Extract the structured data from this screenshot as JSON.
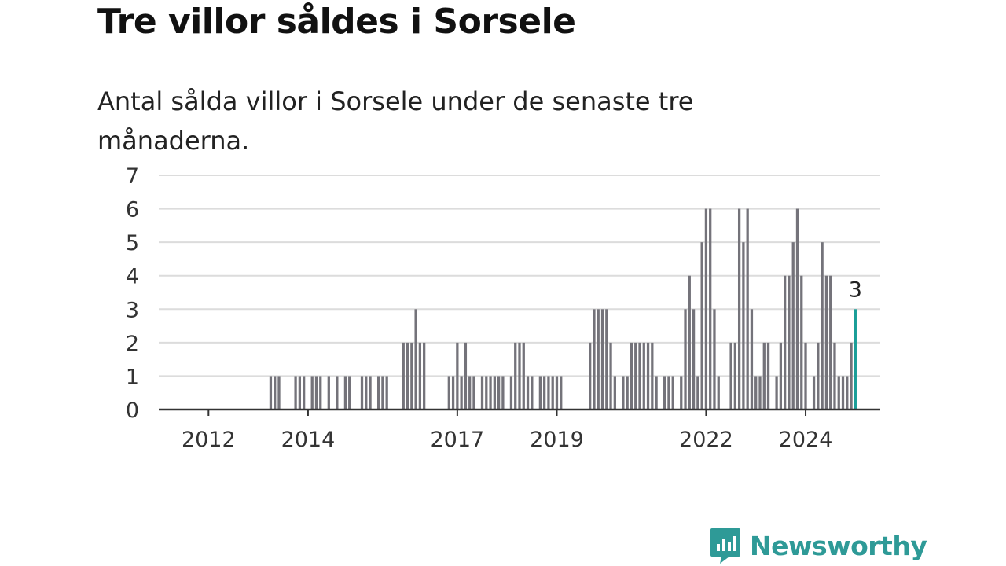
{
  "header": {
    "title": "Tre villor såldes i Sorsele",
    "subtitle": "Antal sålda villor i Sorsele under de senaste tre månaderna."
  },
  "brand": {
    "name": "Newsworthy",
    "icon": "newsworthy-logo-icon",
    "color": "#2e9a97"
  },
  "colors": {
    "bar": "#74737a",
    "highlight": "#1a9e98",
    "grid": "#dcdcdc",
    "axis": "#333333"
  },
  "chart_data": {
    "type": "bar",
    "title": "",
    "xlabel": "",
    "ylabel": "",
    "ylim": [
      0,
      7
    ],
    "yticks": [
      0,
      1,
      2,
      3,
      4,
      5,
      6,
      7
    ],
    "grid": true,
    "x_start": "2011-01",
    "x_end": "2025-07",
    "xticks": [
      {
        "date": "2012-01",
        "label": "2012"
      },
      {
        "date": "2014-01",
        "label": "2014"
      },
      {
        "date": "2017-01",
        "label": "2017"
      },
      {
        "date": "2019-01",
        "label": "2019"
      },
      {
        "date": "2022-01",
        "label": "2022"
      },
      {
        "date": "2024-01",
        "label": "2024"
      }
    ],
    "series": [
      {
        "values": [
          {
            "date": "2012-05",
            "value": 0
          },
          {
            "date": "2012-06",
            "value": 0
          },
          {
            "date": "2012-07",
            "value": 0
          },
          {
            "date": "2012-08",
            "value": 0
          },
          {
            "date": "2012-09",
            "value": 0
          },
          {
            "date": "2012-10",
            "value": 0
          },
          {
            "date": "2012-11",
            "value": 0
          },
          {
            "date": "2012-12",
            "value": 0
          },
          {
            "date": "2013-01",
            "value": 0
          },
          {
            "date": "2013-02",
            "value": 0
          },
          {
            "date": "2013-03",
            "value": 0
          },
          {
            "date": "2013-04",
            "value": 1
          },
          {
            "date": "2013-05",
            "value": 1
          },
          {
            "date": "2013-06",
            "value": 1
          },
          {
            "date": "2013-07",
            "value": 0
          },
          {
            "date": "2013-08",
            "value": 0
          },
          {
            "date": "2013-09",
            "value": 0
          },
          {
            "date": "2013-10",
            "value": 1
          },
          {
            "date": "2013-11",
            "value": 1
          },
          {
            "date": "2013-12",
            "value": 1
          },
          {
            "date": "2014-01",
            "value": 0
          },
          {
            "date": "2014-02",
            "value": 1
          },
          {
            "date": "2014-03",
            "value": 1
          },
          {
            "date": "2014-04",
            "value": 1
          },
          {
            "date": "2014-05",
            "value": 0
          },
          {
            "date": "2014-06",
            "value": 1
          },
          {
            "date": "2014-07",
            "value": 0
          },
          {
            "date": "2014-08",
            "value": 1
          },
          {
            "date": "2014-09",
            "value": 0
          },
          {
            "date": "2014-10",
            "value": 1
          },
          {
            "date": "2014-11",
            "value": 1
          },
          {
            "date": "2014-12",
            "value": 0
          },
          {
            "date": "2015-01",
            "value": 0
          },
          {
            "date": "2015-02",
            "value": 1
          },
          {
            "date": "2015-03",
            "value": 1
          },
          {
            "date": "2015-04",
            "value": 1
          },
          {
            "date": "2015-05",
            "value": 0
          },
          {
            "date": "2015-06",
            "value": 1
          },
          {
            "date": "2015-07",
            "value": 1
          },
          {
            "date": "2015-08",
            "value": 1
          },
          {
            "date": "2015-09",
            "value": 0
          },
          {
            "date": "2015-10",
            "value": 0
          },
          {
            "date": "2015-11",
            "value": 0
          },
          {
            "date": "2015-12",
            "value": 2
          },
          {
            "date": "2016-01",
            "value": 2
          },
          {
            "date": "2016-02",
            "value": 2
          },
          {
            "date": "2016-03",
            "value": 3
          },
          {
            "date": "2016-04",
            "value": 2
          },
          {
            "date": "2016-05",
            "value": 2
          },
          {
            "date": "2016-06",
            "value": 0
          },
          {
            "date": "2016-07",
            "value": 0
          },
          {
            "date": "2016-08",
            "value": 0
          },
          {
            "date": "2016-09",
            "value": 0
          },
          {
            "date": "2016-10",
            "value": 0
          },
          {
            "date": "2016-11",
            "value": 1
          },
          {
            "date": "2016-12",
            "value": 1
          },
          {
            "date": "2017-01",
            "value": 2
          },
          {
            "date": "2017-02",
            "value": 1
          },
          {
            "date": "2017-03",
            "value": 2
          },
          {
            "date": "2017-04",
            "value": 1
          },
          {
            "date": "2017-05",
            "value": 1
          },
          {
            "date": "2017-06",
            "value": 0
          },
          {
            "date": "2017-07",
            "value": 1
          },
          {
            "date": "2017-08",
            "value": 1
          },
          {
            "date": "2017-09",
            "value": 1
          },
          {
            "date": "2017-10",
            "value": 1
          },
          {
            "date": "2017-11",
            "value": 1
          },
          {
            "date": "2017-12",
            "value": 1
          },
          {
            "date": "2018-01",
            "value": 0
          },
          {
            "date": "2018-02",
            "value": 1
          },
          {
            "date": "2018-03",
            "value": 2
          },
          {
            "date": "2018-04",
            "value": 2
          },
          {
            "date": "2018-05",
            "value": 2
          },
          {
            "date": "2018-06",
            "value": 1
          },
          {
            "date": "2018-07",
            "value": 1
          },
          {
            "date": "2018-08",
            "value": 0
          },
          {
            "date": "2018-09",
            "value": 1
          },
          {
            "date": "2018-10",
            "value": 1
          },
          {
            "date": "2018-11",
            "value": 1
          },
          {
            "date": "2018-12",
            "value": 1
          },
          {
            "date": "2019-01",
            "value": 1
          },
          {
            "date": "2019-02",
            "value": 1
          },
          {
            "date": "2019-03",
            "value": 0
          },
          {
            "date": "2019-04",
            "value": 0
          },
          {
            "date": "2019-05",
            "value": 0
          },
          {
            "date": "2019-06",
            "value": 0
          },
          {
            "date": "2019-07",
            "value": 0
          },
          {
            "date": "2019-08",
            "value": 0
          },
          {
            "date": "2019-09",
            "value": 2
          },
          {
            "date": "2019-10",
            "value": 3
          },
          {
            "date": "2019-11",
            "value": 3
          },
          {
            "date": "2019-12",
            "value": 3
          },
          {
            "date": "2020-01",
            "value": 3
          },
          {
            "date": "2020-02",
            "value": 2
          },
          {
            "date": "2020-03",
            "value": 1
          },
          {
            "date": "2020-04",
            "value": 0
          },
          {
            "date": "2020-05",
            "value": 1
          },
          {
            "date": "2020-06",
            "value": 1
          },
          {
            "date": "2020-07",
            "value": 2
          },
          {
            "date": "2020-08",
            "value": 2
          },
          {
            "date": "2020-09",
            "value": 2
          },
          {
            "date": "2020-10",
            "value": 2
          },
          {
            "date": "2020-11",
            "value": 2
          },
          {
            "date": "2020-12",
            "value": 2
          },
          {
            "date": "2021-01",
            "value": 1
          },
          {
            "date": "2021-02",
            "value": 0
          },
          {
            "date": "2021-03",
            "value": 1
          },
          {
            "date": "2021-04",
            "value": 1
          },
          {
            "date": "2021-05",
            "value": 1
          },
          {
            "date": "2021-06",
            "value": 0
          },
          {
            "date": "2021-07",
            "value": 1
          },
          {
            "date": "2021-08",
            "value": 3
          },
          {
            "date": "2021-09",
            "value": 4
          },
          {
            "date": "2021-10",
            "value": 3
          },
          {
            "date": "2021-11",
            "value": 1
          },
          {
            "date": "2021-12",
            "value": 5
          },
          {
            "date": "2022-01",
            "value": 6
          },
          {
            "date": "2022-02",
            "value": 6
          },
          {
            "date": "2022-03",
            "value": 3
          },
          {
            "date": "2022-04",
            "value": 1
          },
          {
            "date": "2022-05",
            "value": 0
          },
          {
            "date": "2022-06",
            "value": 0
          },
          {
            "date": "2022-07",
            "value": 2
          },
          {
            "date": "2022-08",
            "value": 2
          },
          {
            "date": "2022-09",
            "value": 6
          },
          {
            "date": "2022-10",
            "value": 5
          },
          {
            "date": "2022-11",
            "value": 6
          },
          {
            "date": "2022-12",
            "value": 3
          },
          {
            "date": "2023-01",
            "value": 1
          },
          {
            "date": "2023-02",
            "value": 1
          },
          {
            "date": "2023-03",
            "value": 2
          },
          {
            "date": "2023-04",
            "value": 2
          },
          {
            "date": "2023-05",
            "value": 0
          },
          {
            "date": "2023-06",
            "value": 1
          },
          {
            "date": "2023-07",
            "value": 2
          },
          {
            "date": "2023-08",
            "value": 4
          },
          {
            "date": "2023-09",
            "value": 4
          },
          {
            "date": "2023-10",
            "value": 5
          },
          {
            "date": "2023-11",
            "value": 6
          },
          {
            "date": "2023-12",
            "value": 4
          },
          {
            "date": "2024-01",
            "value": 2
          },
          {
            "date": "2024-02",
            "value": 0
          },
          {
            "date": "2024-03",
            "value": 1
          },
          {
            "date": "2024-04",
            "value": 2
          },
          {
            "date": "2024-05",
            "value": 5
          },
          {
            "date": "2024-06",
            "value": 4
          },
          {
            "date": "2024-07",
            "value": 4
          },
          {
            "date": "2024-08",
            "value": 2
          },
          {
            "date": "2024-09",
            "value": 1
          },
          {
            "date": "2024-10",
            "value": 1
          },
          {
            "date": "2024-11",
            "value": 1
          },
          {
            "date": "2024-12",
            "value": 2
          },
          {
            "date": "2025-01",
            "value": 3
          }
        ]
      }
    ],
    "highlight": {
      "date": "2025-01",
      "value": 3,
      "label": "3"
    }
  }
}
